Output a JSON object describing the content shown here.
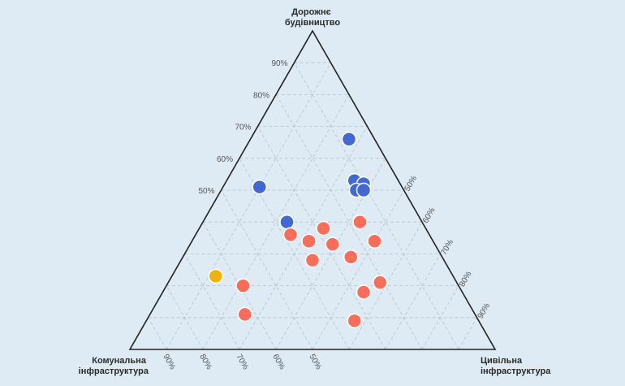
{
  "chart_data": {
    "type": "scatter",
    "subtype": "ternary",
    "vertices": {
      "top": [
        "Дорожнє",
        "будівництво"
      ],
      "left": [
        "Комунальна",
        "інфраструктура"
      ],
      "right": [
        "Цивільна",
        "інфраструктура"
      ]
    },
    "ticks": {
      "top_axis": [
        "50%",
        "60%",
        "70%",
        "80%",
        "90%"
      ],
      "right_axis": [
        "50%",
        "60%",
        "70%",
        "80%",
        "90%"
      ],
      "left_axis": [
        "90%",
        "80%",
        "70%",
        "60%",
        "50%"
      ]
    },
    "grid": true,
    "colors": {
      "blue": "#4169d1",
      "red": "#f96e5a",
      "yellow": "#efb20e",
      "frame": "#222222",
      "background": "#deebf4"
    },
    "series": [
      {
        "color": "#4169d1",
        "points": [
          {
            "top": 0.66,
            "right": 0.27,
            "left": 0.07
          },
          {
            "top": 0.53,
            "right": 0.35,
            "left": 0.12
          },
          {
            "top": 0.52,
            "right": 0.38,
            "left": 0.1
          },
          {
            "top": 0.5,
            "right": 0.37,
            "left": 0.13
          },
          {
            "top": 0.5,
            "right": 0.39,
            "left": 0.11
          },
          {
            "top": 0.51,
            "right": 0.1,
            "left": 0.39
          },
          {
            "top": 0.4,
            "right": 0.23,
            "left": 0.37
          }
        ]
      },
      {
        "color": "#f96e5a",
        "points": [
          {
            "top": 0.4,
            "right": 0.43,
            "left": 0.17
          },
          {
            "top": 0.38,
            "right": 0.34,
            "left": 0.28
          },
          {
            "top": 0.36,
            "right": 0.26,
            "left": 0.38
          },
          {
            "top": 0.34,
            "right": 0.32,
            "left": 0.34
          },
          {
            "top": 0.33,
            "right": 0.39,
            "left": 0.28
          },
          {
            "top": 0.34,
            "right": 0.5,
            "left": 0.16
          },
          {
            "top": 0.29,
            "right": 0.46,
            "left": 0.25
          },
          {
            "top": 0.28,
            "right": 0.36,
            "left": 0.36
          },
          {
            "top": 0.21,
            "right": 0.58,
            "left": 0.21
          },
          {
            "top": 0.18,
            "right": 0.55,
            "left": 0.27
          },
          {
            "top": 0.2,
            "right": 0.21,
            "left": 0.59
          },
          {
            "top": 0.11,
            "right": 0.26,
            "left": 0.63
          },
          {
            "top": 0.09,
            "right": 0.57,
            "left": 0.34
          }
        ]
      },
      {
        "color": "#efb20e",
        "points": [
          {
            "top": 0.23,
            "right": 0.12,
            "left": 0.65
          }
        ]
      }
    ]
  }
}
